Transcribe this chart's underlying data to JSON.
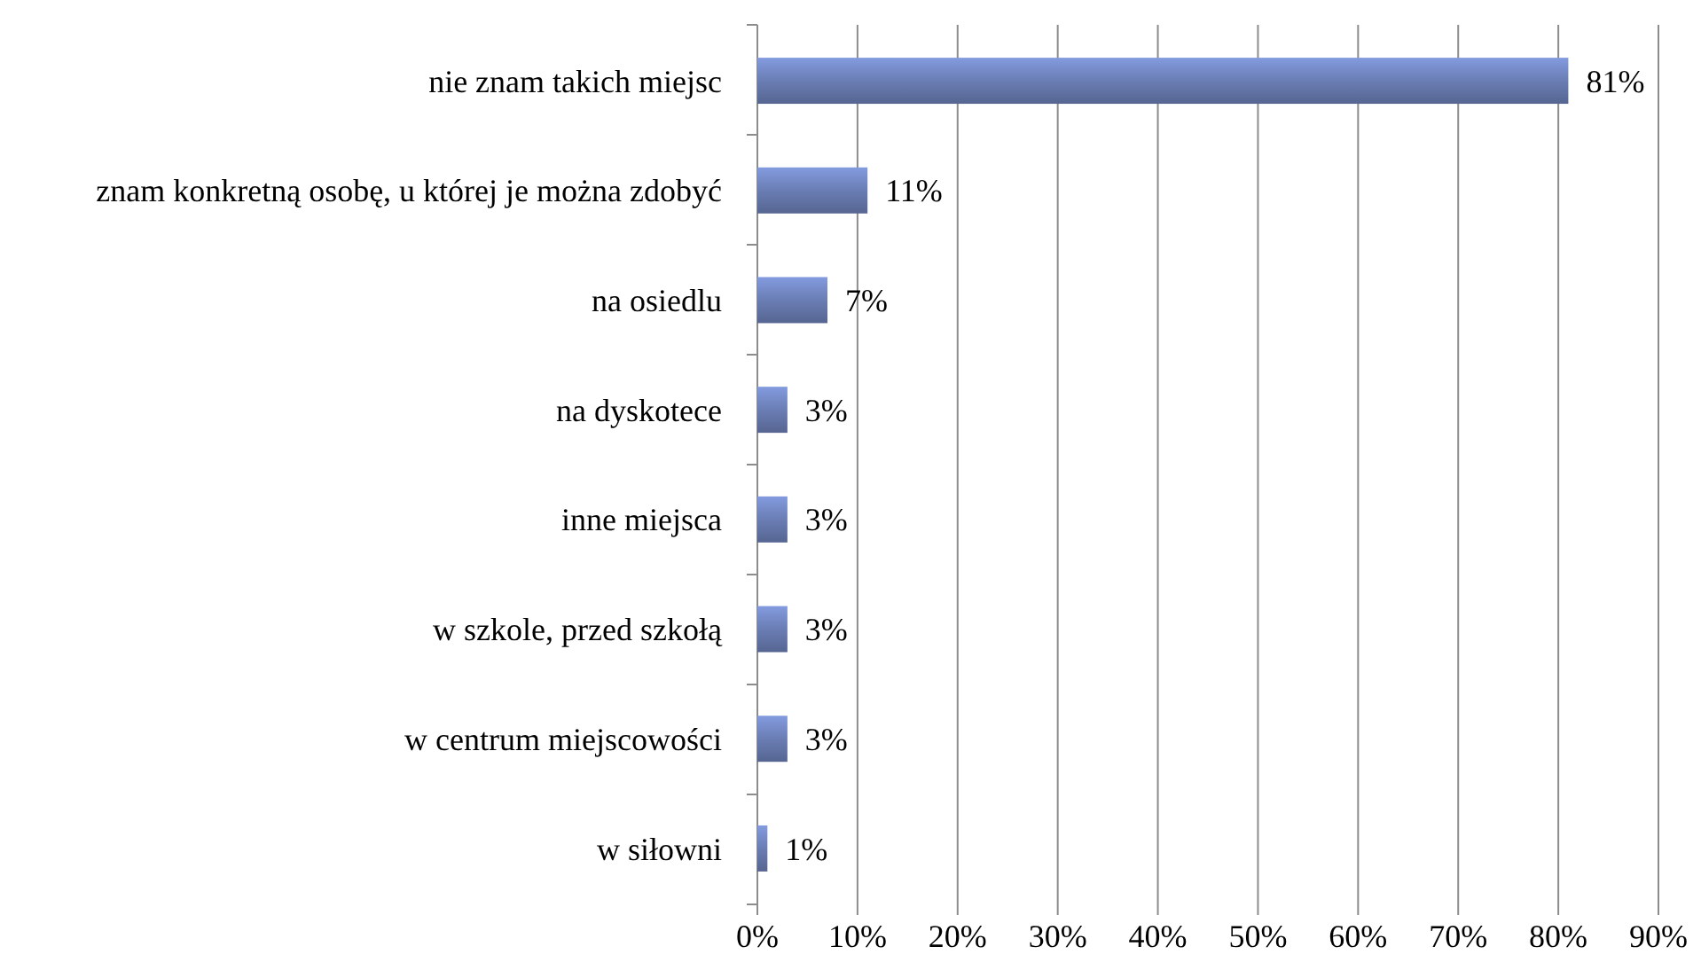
{
  "chart_data": {
    "type": "bar",
    "orientation": "horizontal",
    "categories": [
      "nie znam takich miejsc",
      "znam konkretną osobę, u której je można zdobyć",
      "na osiedlu",
      "na dyskotece",
      "inne miejsca",
      "w szkole, przed szkołą",
      "w centrum miejscowości",
      "w siłowni"
    ],
    "values": [
      81,
      11,
      7,
      3,
      3,
      3,
      3,
      1
    ],
    "color": "#6a7db4",
    "xlim": [
      0,
      90
    ],
    "xticks": [
      {
        "value": 0,
        "label": "0%"
      },
      {
        "value": 10,
        "label": "10%"
      },
      {
        "value": 20,
        "label": "20%"
      },
      {
        "value": 30,
        "label": "30%"
      },
      {
        "value": 40,
        "label": "40%"
      },
      {
        "value": 50,
        "label": "50%"
      },
      {
        "value": 60,
        "label": "60%"
      },
      {
        "value": 70,
        "label": "70%"
      },
      {
        "value": 80,
        "label": "80%"
      },
      {
        "value": 90,
        "label": "90%"
      }
    ],
    "value_labels": [
      "81%",
      "11%",
      "7%",
      "3%",
      "3%",
      "3%",
      "3%",
      "1%"
    ],
    "grid": "x"
  }
}
